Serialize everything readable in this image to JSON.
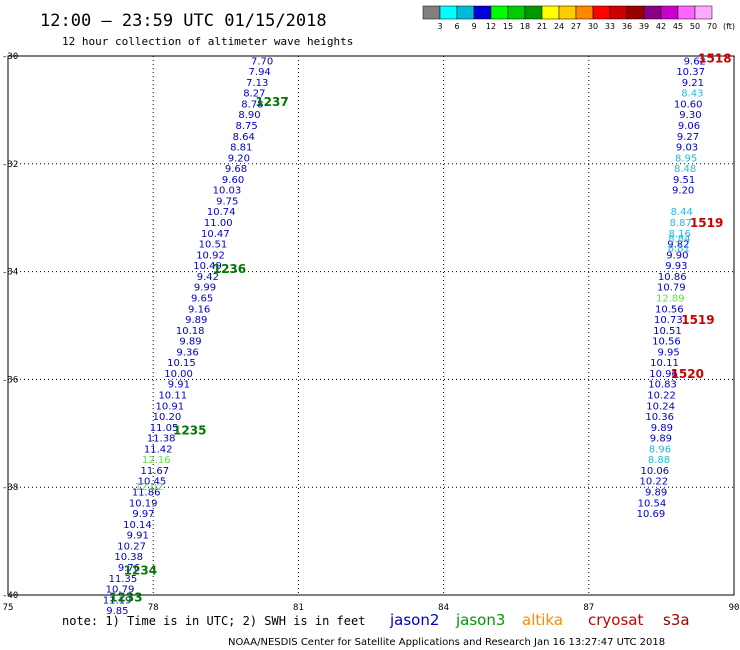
{
  "title": "12:00 – 23:59 UTC 01/15/2018",
  "subtitle": "12 hour collection of altimeter wave heights",
  "note": "note: 1) Time is in UTC; 2) SWH is in feet",
  "footer": "NOAA/NESDIS Center for Satellite Applications and Research    Jan 16 13:27:47 UTC 2018",
  "legend": {
    "unit": "(ft)",
    "bins": [
      {
        "label": "3",
        "color": "#808080"
      },
      {
        "label": "6",
        "color": "#00ffff"
      },
      {
        "label": "9",
        "color": "#00bcd8"
      },
      {
        "label": "12",
        "color": "#0000d8"
      },
      {
        "label": "15",
        "color": "#00ff00"
      },
      {
        "label": "18",
        "color": "#00cc00"
      },
      {
        "label": "21",
        "color": "#009900"
      },
      {
        "label": "24",
        "color": "#ffff00"
      },
      {
        "label": "27",
        "color": "#ffcc00"
      },
      {
        "label": "30",
        "color": "#ff8800"
      },
      {
        "label": "33",
        "color": "#ff0000"
      },
      {
        "label": "36",
        "color": "#cc0000"
      },
      {
        "label": "39",
        "color": "#990000"
      },
      {
        "label": "42",
        "color": "#880088"
      },
      {
        "label": "45",
        "color": "#cc00cc"
      },
      {
        "label": "50",
        "color": "#ff66ff"
      },
      {
        "label": "70",
        "color": "#ffaaff"
      }
    ]
  },
  "satellites": [
    {
      "name": "jason2",
      "color": "#0000cc"
    },
    {
      "name": "jason3",
      "color": "#009900"
    },
    {
      "name": "altika",
      "color": "#ff8800"
    },
    {
      "name": "cryosat",
      "color": "#cc0000"
    },
    {
      "name": "s3a",
      "color": "#990000"
    }
  ],
  "chart_data": {
    "type": "scatter",
    "xlim": [
      75,
      90
    ],
    "ylim": [
      -40,
      -30
    ],
    "x_ticks": [
      "75",
      "78",
      "81",
      "84",
      "87",
      "90"
    ],
    "y_ticks": [
      "-30",
      "-32",
      "-34",
      "-36",
      "-38",
      "-40"
    ],
    "grid": true,
    "series": [
      {
        "name": "jason2",
        "points": [
          {
            "x": 80.48,
            "y": -30.08,
            "label": "7.70"
          },
          {
            "x": 80.43,
            "y": -30.28,
            "label": "7.94"
          },
          {
            "x": 80.38,
            "y": -30.48,
            "label": "7.13"
          },
          {
            "x": 80.32,
            "y": -30.68,
            "label": "8.27"
          },
          {
            "x": 80.28,
            "y": -30.88,
            "label": "8.78"
          },
          {
            "x": 80.22,
            "y": -31.08,
            "label": "8.90"
          },
          {
            "x": 80.16,
            "y": -31.28,
            "label": "8.75"
          },
          {
            "x": 80.1,
            "y": -31.48,
            "label": "8.64"
          },
          {
            "x": 80.05,
            "y": -31.68,
            "label": "8.81"
          },
          {
            "x": 80.0,
            "y": -31.88,
            "label": "9.20"
          },
          {
            "x": 79.94,
            "y": -32.08,
            "label": "9.68"
          },
          {
            "x": 79.88,
            "y": -32.28,
            "label": "9.60"
          },
          {
            "x": 79.82,
            "y": -32.48,
            "label": "10.03"
          },
          {
            "x": 79.76,
            "y": -32.68,
            "label": "9.75"
          },
          {
            "x": 79.7,
            "y": -32.88,
            "label": "10.74"
          },
          {
            "x": 79.64,
            "y": -33.08,
            "label": "11.00"
          },
          {
            "x": 79.58,
            "y": -33.28,
            "label": "10.47"
          },
          {
            "x": 79.53,
            "y": -33.48,
            "label": "10.51"
          },
          {
            "x": 79.48,
            "y": -33.68,
            "label": "10.92"
          },
          {
            "x": 79.42,
            "y": -33.88,
            "label": "10.49"
          },
          {
            "x": 79.36,
            "y": -34.08,
            "label": "9.42"
          },
          {
            "x": 79.3,
            "y": -34.28,
            "label": "9.99"
          },
          {
            "x": 79.24,
            "y": -34.48,
            "label": "9.65"
          },
          {
            "x": 79.18,
            "y": -34.68,
            "label": "9.16"
          },
          {
            "x": 79.12,
            "y": -34.88,
            "label": "9.89"
          },
          {
            "x": 79.06,
            "y": -35.08,
            "label": "10.18"
          },
          {
            "x": 79.0,
            "y": -35.28,
            "label": "9.89"
          },
          {
            "x": 78.94,
            "y": -35.48,
            "label": "9.36"
          },
          {
            "x": 78.88,
            "y": -35.68,
            "label": "10.15"
          },
          {
            "x": 78.82,
            "y": -35.88,
            "label": "10.00"
          },
          {
            "x": 78.76,
            "y": -36.08,
            "label": "9.91"
          },
          {
            "x": 78.7,
            "y": -36.28,
            "label": "10.11"
          },
          {
            "x": 78.64,
            "y": -36.48,
            "label": "10.91"
          },
          {
            "x": 78.58,
            "y": -36.68,
            "label": "10.20"
          },
          {
            "x": 78.52,
            "y": -36.88,
            "label": "11.05"
          },
          {
            "x": 78.46,
            "y": -37.08,
            "label": "11.38"
          },
          {
            "x": 78.4,
            "y": -37.28,
            "label": "11.42"
          },
          {
            "x": 78.33,
            "y": -37.68,
            "label": "11.67"
          },
          {
            "x": 78.27,
            "y": -37.88,
            "label": "10.45"
          },
          {
            "x": 78.15,
            "y": -38.08,
            "label": "11.86"
          },
          {
            "x": 78.09,
            "y": -38.28,
            "label": "10.19"
          },
          {
            "x": 78.03,
            "y": -38.48,
            "label": "9.97"
          },
          {
            "x": 77.97,
            "y": -38.68,
            "label": "10.14"
          },
          {
            "x": 77.91,
            "y": -38.88,
            "label": "9.91"
          },
          {
            "x": 77.85,
            "y": -39.08,
            "label": "10.27"
          },
          {
            "x": 77.79,
            "y": -39.28,
            "label": "10.38"
          },
          {
            "x": 77.73,
            "y": -39.48,
            "label": "9.76"
          },
          {
            "x": 77.67,
            "y": -39.68,
            "label": "11.35"
          },
          {
            "x": 77.61,
            "y": -39.88,
            "label": "10.79"
          },
          {
            "x": 77.55,
            "y": -40.08,
            "label": "11.19"
          },
          {
            "x": 77.49,
            "y": -40.28,
            "label": "9.85"
          },
          {
            "x": 89.42,
            "y": -30.08,
            "label": "9.62"
          },
          {
            "x": 89.4,
            "y": -30.28,
            "label": "10.37"
          },
          {
            "x": 89.38,
            "y": -30.48,
            "label": "9.21"
          },
          {
            "x": 89.35,
            "y": -30.88,
            "label": "10.60"
          },
          {
            "x": 89.33,
            "y": -31.08,
            "label": "9.30"
          },
          {
            "x": 89.3,
            "y": -31.28,
            "label": "9.06"
          },
          {
            "x": 89.28,
            "y": -31.48,
            "label": "9.27"
          },
          {
            "x": 89.26,
            "y": -31.68,
            "label": "9.03"
          },
          {
            "x": 89.2,
            "y": -32.28,
            "label": "9.51"
          },
          {
            "x": 89.18,
            "y": -32.48,
            "label": "9.20"
          },
          {
            "x": 89.08,
            "y": -33.48,
            "label": "9.82"
          },
          {
            "x": 89.06,
            "y": -33.68,
            "label": "9.90"
          },
          {
            "x": 89.04,
            "y": -33.88,
            "label": "9.93"
          },
          {
            "x": 89.02,
            "y": -34.08,
            "label": "10.86"
          },
          {
            "x": 89.0,
            "y": -34.28,
            "label": "10.79"
          },
          {
            "x": 88.96,
            "y": -34.68,
            "label": "10.56"
          },
          {
            "x": 88.94,
            "y": -34.88,
            "label": "10.73"
          },
          {
            "x": 88.92,
            "y": -35.08,
            "label": "10.51"
          },
          {
            "x": 88.9,
            "y": -35.28,
            "label": "10.56"
          },
          {
            "x": 88.88,
            "y": -35.48,
            "label": "9.95"
          },
          {
            "x": 88.86,
            "y": -35.68,
            "label": "10.11"
          },
          {
            "x": 88.84,
            "y": -35.88,
            "label": "10.96"
          },
          {
            "x": 88.82,
            "y": -36.08,
            "label": "10.83"
          },
          {
            "x": 88.8,
            "y": -36.28,
            "label": "10.22"
          },
          {
            "x": 88.78,
            "y": -36.48,
            "label": "10.24"
          },
          {
            "x": 88.76,
            "y": -36.68,
            "label": "10.36"
          },
          {
            "x": 88.74,
            "y": -36.88,
            "label": "9.89"
          },
          {
            "x": 88.72,
            "y": -37.08,
            "label": "9.89"
          },
          {
            "x": 88.66,
            "y": -37.68,
            "label": "10.06"
          },
          {
            "x": 88.64,
            "y": -37.88,
            "label": "10.22"
          },
          {
            "x": 88.62,
            "y": -38.08,
            "label": "9.89"
          },
          {
            "x": 88.6,
            "y": -38.28,
            "label": "10.54"
          },
          {
            "x": 88.58,
            "y": -38.48,
            "label": "10.69"
          }
        ]
      },
      {
        "name": "jason3",
        "points": [
          {
            "x": 78.36,
            "y": -37.48,
            "label": "12.16"
          },
          {
            "x": 78.21,
            "y": -37.98,
            "label": "12.02"
          },
          {
            "x": 88.98,
            "y": -34.48,
            "label": "12.89"
          }
        ]
      },
      {
        "name": "cyan",
        "points": [
          {
            "x": 89.37,
            "y": -30.68,
            "label": "8.43"
          },
          {
            "x": 89.24,
            "y": -31.88,
            "label": "8.95"
          },
          {
            "x": 89.22,
            "y": -32.08,
            "label": "8.48"
          },
          {
            "x": 89.15,
            "y": -32.88,
            "label": "8.44"
          },
          {
            "x": 89.13,
            "y": -33.08,
            "label": "8.87"
          },
          {
            "x": 89.11,
            "y": -33.28,
            "label": "8.16"
          },
          {
            "x": 89.1,
            "y": -33.38,
            "label": "8.84"
          },
          {
            "x": 89.09,
            "y": -33.55,
            "label": "8.81"
          },
          {
            "x": 88.7,
            "y": -37.28,
            "label": "8.96"
          },
          {
            "x": 88.68,
            "y": -37.48,
            "label": "8.88"
          }
        ]
      }
    ],
    "pass_labels": [
      {
        "text": "1237",
        "x": 80.8,
        "y": -30.85,
        "color": "#007700"
      },
      {
        "text": "1236",
        "x": 79.92,
        "y": -33.95,
        "color": "#007700"
      },
      {
        "text": "1235",
        "x": 79.1,
        "y": -36.95,
        "color": "#007700"
      },
      {
        "text": "1234",
        "x": 78.08,
        "y": -39.55,
        "color": "#007700"
      },
      {
        "text": "1233",
        "x": 77.78,
        "y": -40.05,
        "color": "#007700"
      },
      {
        "text": "1518",
        "x": 89.95,
        "y": -30.05,
        "color": "#cc0000"
      },
      {
        "text": "1519",
        "x": 89.78,
        "y": -33.1,
        "color": "#cc0000"
      },
      {
        "text": "1519",
        "x": 89.6,
        "y": -34.9,
        "color": "#cc0000"
      },
      {
        "text": "1520",
        "x": 89.38,
        "y": -35.9,
        "color": "#cc0000"
      }
    ]
  }
}
